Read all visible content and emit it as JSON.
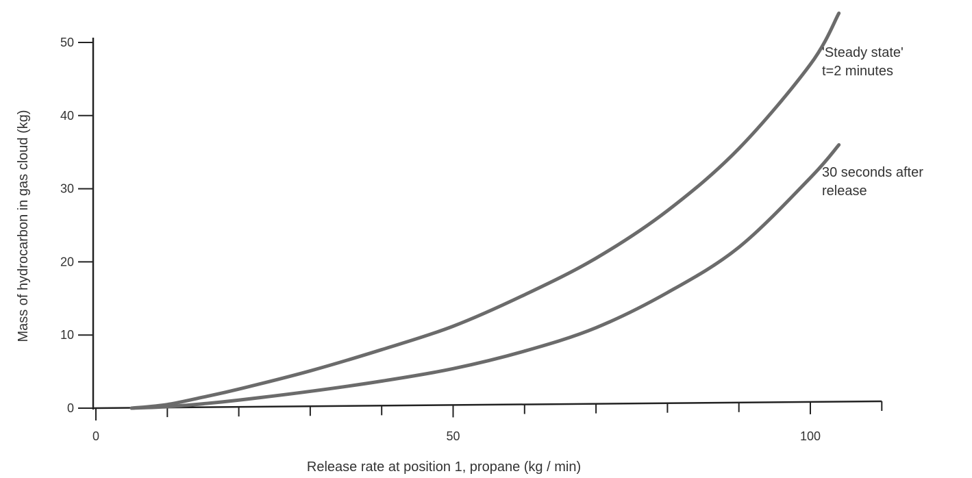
{
  "chart_data": {
    "type": "line",
    "title": "",
    "xlabel": "Release rate at position 1, propane (kg / min)",
    "ylabel": "Mass of hydrocarbon in gas cloud (kg)",
    "xlim": [
      0,
      110
    ],
    "ylim": [
      0,
      55
    ],
    "x_ticks": [
      0,
      50,
      100
    ],
    "x_minor_ticks": [
      10,
      20,
      30,
      40,
      60,
      70,
      80,
      90,
      110
    ],
    "y_ticks": [
      0,
      10,
      20,
      30,
      40,
      50
    ],
    "grid": false,
    "legend": "none",
    "series": [
      {
        "name": "'Steady state' t=2 minutes",
        "label_lines": [
          "'Steady state'",
          "t=2 minutes"
        ],
        "color": "#6b6b6b",
        "x": [
          5,
          10,
          15,
          20,
          30,
          40,
          50,
          60,
          70,
          80,
          90,
          100,
          104
        ],
        "y": [
          0,
          0.5,
          1.5,
          2.6,
          5.1,
          8.0,
          11.2,
          15.5,
          20.5,
          27.0,
          35.5,
          47.0,
          54.0
        ]
      },
      {
        "name": "30 seconds after release",
        "label_lines": [
          "30 seconds after",
          "release"
        ],
        "color": "#6b6b6b",
        "x": [
          5,
          10,
          15,
          20,
          30,
          40,
          50,
          60,
          70,
          80,
          90,
          100,
          104
        ],
        "y": [
          0,
          0.2,
          0.6,
          1.1,
          2.3,
          3.7,
          5.4,
          7.8,
          11.0,
          15.8,
          22.0,
          31.5,
          36.0
        ]
      }
    ]
  }
}
